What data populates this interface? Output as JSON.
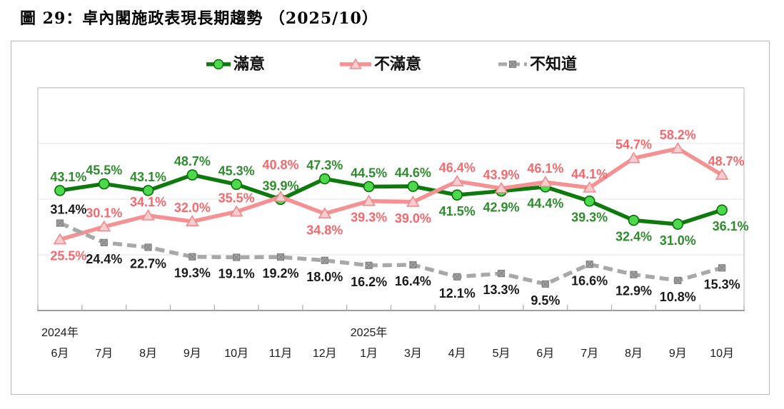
{
  "page": {
    "title": "圖 29：卓內閣施政表現長期趨勢 （2025/10）"
  },
  "chart_data": {
    "type": "line",
    "title": "卓內閣施政表現長期趨勢",
    "categories": [
      "6月",
      "7月",
      "8月",
      "9月",
      "10月",
      "11月",
      "12月",
      "1月",
      "3月",
      "4月",
      "5月",
      "6月",
      "7月",
      "8月",
      "9月",
      "10月"
    ],
    "year_markers": [
      {
        "index": 0,
        "label": "2024年"
      },
      {
        "index": 7,
        "label": "2025年"
      }
    ],
    "ylim": [
      0,
      80
    ],
    "gridlines": [
      20,
      40,
      60
    ],
    "grid": "horizontal-only",
    "legend_position": "top",
    "value_suffix": "%",
    "series": [
      {
        "name": "滿意",
        "marker": "circle",
        "dash": false,
        "line_color": "#0e7a0e",
        "marker_fill": "#4cd94c",
        "marker_stroke": "#0b6b0b",
        "label_color": "#2e8b2e",
        "values": [
          43.1,
          45.5,
          43.1,
          48.7,
          45.3,
          39.9,
          47.3,
          44.5,
          44.6,
          41.5,
          42.9,
          44.4,
          39.3,
          32.4,
          31.0,
          36.1
        ],
        "label_side": [
          "above",
          "above",
          "above",
          "above",
          "above",
          "above",
          "above",
          "above",
          "above",
          "below",
          "below",
          "below",
          "below",
          "below",
          "below",
          "below"
        ]
      },
      {
        "name": "不滿意",
        "marker": "triangle",
        "dash": false,
        "line_color": "#f59192",
        "marker_fill": "#f9cdd0",
        "marker_stroke": "#ef8a8c",
        "label_color": "#f4696d",
        "values": [
          25.5,
          30.1,
          34.1,
          32.0,
          35.5,
          40.8,
          34.8,
          39.3,
          39.0,
          46.4,
          43.9,
          46.1,
          44.1,
          54.7,
          58.2,
          48.7
        ],
        "label_side": [
          "below",
          "above",
          "above",
          "above",
          "above",
          "above",
          "below",
          "below",
          "below",
          "above",
          "above",
          "above",
          "above",
          "above",
          "above",
          "above"
        ]
      },
      {
        "name": "不知道",
        "marker": "square",
        "dash": true,
        "line_color": "#a8a8a8",
        "marker_fill": "#a3a3a3",
        "marker_stroke": "#7f7f7f",
        "label_color": "#1a1a1a",
        "values": [
          31.4,
          24.4,
          22.7,
          19.3,
          19.1,
          19.2,
          18.0,
          16.2,
          16.4,
          12.1,
          13.3,
          9.5,
          16.6,
          12.9,
          10.8,
          15.3
        ],
        "label_side": [
          "above",
          "below",
          "below",
          "below",
          "below",
          "below",
          "below",
          "below",
          "below",
          "below",
          "below",
          "below",
          "below",
          "below",
          "below",
          "below"
        ]
      }
    ]
  }
}
